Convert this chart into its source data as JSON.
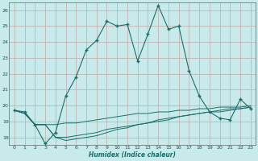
{
  "xlabel": "Humidex (Indice chaleur)",
  "background_color": "#c8eaea",
  "grid_color": "#c0a8a8",
  "line_color": "#1a6e6a",
  "xlim": [
    -0.5,
    23.5
  ],
  "ylim": [
    17.5,
    26.5
  ],
  "yticks": [
    18,
    19,
    20,
    21,
    22,
    23,
    24,
    25,
    26
  ],
  "xticks": [
    0,
    1,
    2,
    3,
    4,
    5,
    6,
    7,
    8,
    9,
    10,
    11,
    12,
    13,
    14,
    15,
    16,
    17,
    18,
    19,
    20,
    21,
    22,
    23
  ],
  "main_x": [
    0,
    1,
    2,
    3,
    4,
    5,
    6,
    7,
    8,
    9,
    10,
    11,
    12,
    13,
    14,
    15,
    16,
    17,
    18,
    19,
    20,
    21,
    22,
    23
  ],
  "main_y": [
    19.7,
    19.6,
    18.8,
    17.6,
    18.3,
    20.6,
    21.8,
    23.5,
    24.1,
    25.3,
    25.0,
    25.1,
    22.8,
    24.5,
    26.3,
    24.8,
    25.0,
    22.2,
    20.6,
    19.6,
    19.2,
    19.1,
    20.4,
    19.8
  ],
  "line1_x": [
    0,
    1,
    2,
    3,
    4,
    5,
    6,
    7,
    8,
    9,
    10,
    11,
    12,
    13,
    14,
    15,
    16,
    17,
    18,
    19,
    20,
    21,
    22,
    23
  ],
  "line1_y": [
    19.7,
    19.5,
    18.8,
    18.8,
    18.8,
    18.9,
    18.9,
    19.0,
    19.1,
    19.2,
    19.3,
    19.4,
    19.5,
    19.5,
    19.6,
    19.6,
    19.7,
    19.7,
    19.8,
    19.8,
    19.9,
    19.9,
    19.9,
    20.0
  ],
  "line2_x": [
    0,
    1,
    2,
    3,
    4,
    5,
    6,
    7,
    8,
    9,
    10,
    11,
    12,
    13,
    14,
    15,
    16,
    17,
    18,
    19,
    20,
    21,
    22,
    23
  ],
  "line2_y": [
    19.7,
    19.5,
    18.8,
    18.8,
    18.0,
    18.0,
    18.1,
    18.2,
    18.3,
    18.5,
    18.6,
    18.7,
    18.8,
    18.9,
    19.1,
    19.2,
    19.3,
    19.4,
    19.5,
    19.6,
    19.6,
    19.7,
    19.8,
    19.9
  ],
  "line3_x": [
    0,
    1,
    2,
    3,
    4,
    5,
    6,
    7,
    8,
    9,
    10,
    11,
    12,
    13,
    14,
    15,
    16,
    17,
    18,
    19,
    20,
    21,
    22,
    23
  ],
  "line3_y": [
    19.7,
    19.5,
    18.8,
    18.8,
    18.0,
    17.8,
    17.9,
    18.0,
    18.1,
    18.3,
    18.5,
    18.6,
    18.8,
    18.9,
    19.0,
    19.1,
    19.3,
    19.4,
    19.5,
    19.6,
    19.7,
    19.8,
    19.8,
    19.9
  ]
}
